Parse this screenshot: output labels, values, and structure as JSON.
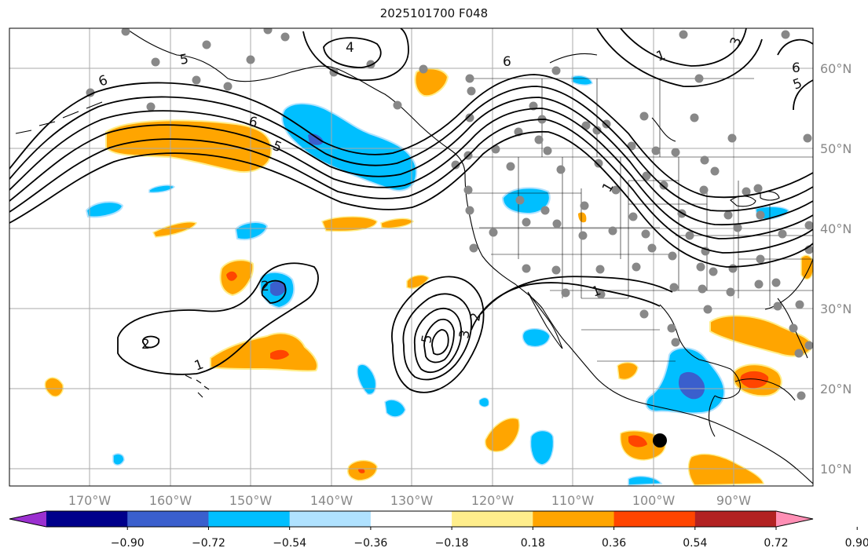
{
  "title": "2025101700 F048",
  "lon_labels": [
    "170°W",
    "160°W",
    "150°W",
    "140°W",
    "130°W",
    "120°W",
    "110°W",
    "100°W",
    "90°W"
  ],
  "lat_labels": [
    "60°N",
    "50°N",
    "40°N",
    "30°N",
    "20°N",
    "10°N"
  ],
  "colorbar": {
    "tick_labels": [
      "−0.90",
      "−0.72",
      "−0.54",
      "−0.36",
      "−0.18",
      "0.18",
      "0.36",
      "0.54",
      "0.72",
      "0.90"
    ],
    "colors": [
      "#9b30d0",
      "#00008b",
      "#3a5fcd",
      "#00bfff",
      "#b0e2ff",
      "#ffffff",
      "#ffee8c",
      "#ffa500",
      "#ff4500",
      "#b22222",
      "#ff8fb5"
    ]
  },
  "contour_labels": [
    "6",
    "5",
    "4",
    "6",
    "6",
    "5",
    "1",
    "3",
    "6",
    "5",
    "1",
    "2",
    "2",
    "1",
    "5",
    "3",
    "2",
    "1"
  ],
  "legend_colors": {
    "land_lines": "#000000",
    "grid": "#aaaaaa",
    "stations": "#888888",
    "contour": "#000000",
    "marker": "#000000"
  }
}
